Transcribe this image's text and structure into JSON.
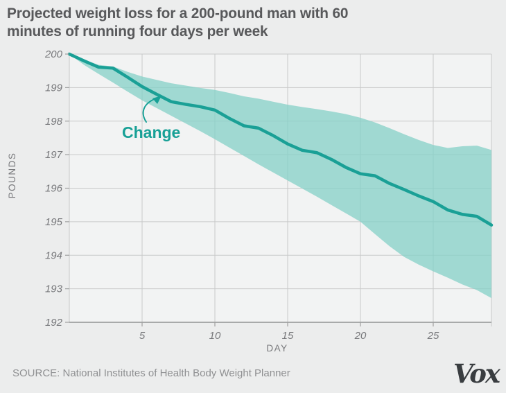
{
  "title": {
    "line1": "Projected weight loss for a 200-pound man with 60",
    "line2": "minutes of running four days per week"
  },
  "footer": {
    "source": "SOURCE: National Institutes of Health Body Weight Planner",
    "logo": "Vox"
  },
  "colors": {
    "line": "#1aa096",
    "band": "#9fd8d1",
    "band_fill": "#84d0c7",
    "grid": "#c8c9c9",
    "axis": "#9fa0a0",
    "tick_text": "#77787b",
    "title_text": "#58595b",
    "annotation": "#17a096",
    "background": "#eceded",
    "plot_background": "#f2f3f3"
  },
  "chart_data": {
    "type": "line",
    "title": "Projected weight loss for a 200-pound man with 60 minutes of running four days per week",
    "xlabel": "DAY",
    "ylabel": "POUNDS",
    "xlim": [
      0,
      29
    ],
    "ylim": [
      192,
      200
    ],
    "x_ticks": [
      5,
      10,
      15,
      20,
      25
    ],
    "y_ticks": [
      192,
      193,
      194,
      195,
      196,
      197,
      198,
      199,
      200
    ],
    "grid": true,
    "legend": "none",
    "annotation": {
      "label": "Change",
      "points_to": "Change series line near day 6"
    },
    "x": [
      0,
      1,
      2,
      3,
      4,
      5,
      6,
      7,
      8,
      9,
      10,
      11,
      12,
      13,
      14,
      15,
      16,
      17,
      18,
      19,
      20,
      21,
      22,
      23,
      24,
      25,
      26,
      27,
      28,
      29
    ],
    "series": [
      {
        "name": "Change",
        "role": "projected-weight",
        "values": [
          200.0,
          199.8,
          199.61,
          199.58,
          199.31,
          199.03,
          198.8,
          198.58,
          198.5,
          198.43,
          198.33,
          198.08,
          197.86,
          197.79,
          197.57,
          197.32,
          197.13,
          197.06,
          196.86,
          196.62,
          196.43,
          196.37,
          196.14,
          195.96,
          195.77,
          195.6,
          195.35,
          195.22,
          195.16,
          194.9
        ]
      },
      {
        "name": "uncertainty-upper",
        "role": "band-upper-bound",
        "values": [
          200.0,
          199.84,
          199.68,
          199.63,
          199.47,
          199.33,
          199.23,
          199.13,
          199.06,
          198.99,
          198.93,
          198.84,
          198.74,
          198.67,
          198.58,
          198.49,
          198.42,
          198.36,
          198.29,
          198.21,
          198.1,
          197.96,
          197.79,
          197.61,
          197.44,
          197.29,
          197.2,
          197.25,
          197.27,
          197.14
        ]
      },
      {
        "name": "uncertainty-lower",
        "role": "band-lower-bound",
        "values": [
          200.0,
          199.68,
          199.41,
          199.15,
          198.88,
          198.62,
          198.39,
          198.16,
          197.93,
          197.7,
          197.46,
          197.21,
          196.96,
          196.71,
          196.47,
          196.23,
          195.99,
          195.75,
          195.5,
          195.25,
          195.0,
          194.63,
          194.27,
          193.95,
          193.72,
          193.52,
          193.33,
          193.13,
          192.96,
          192.72
        ]
      }
    ]
  }
}
